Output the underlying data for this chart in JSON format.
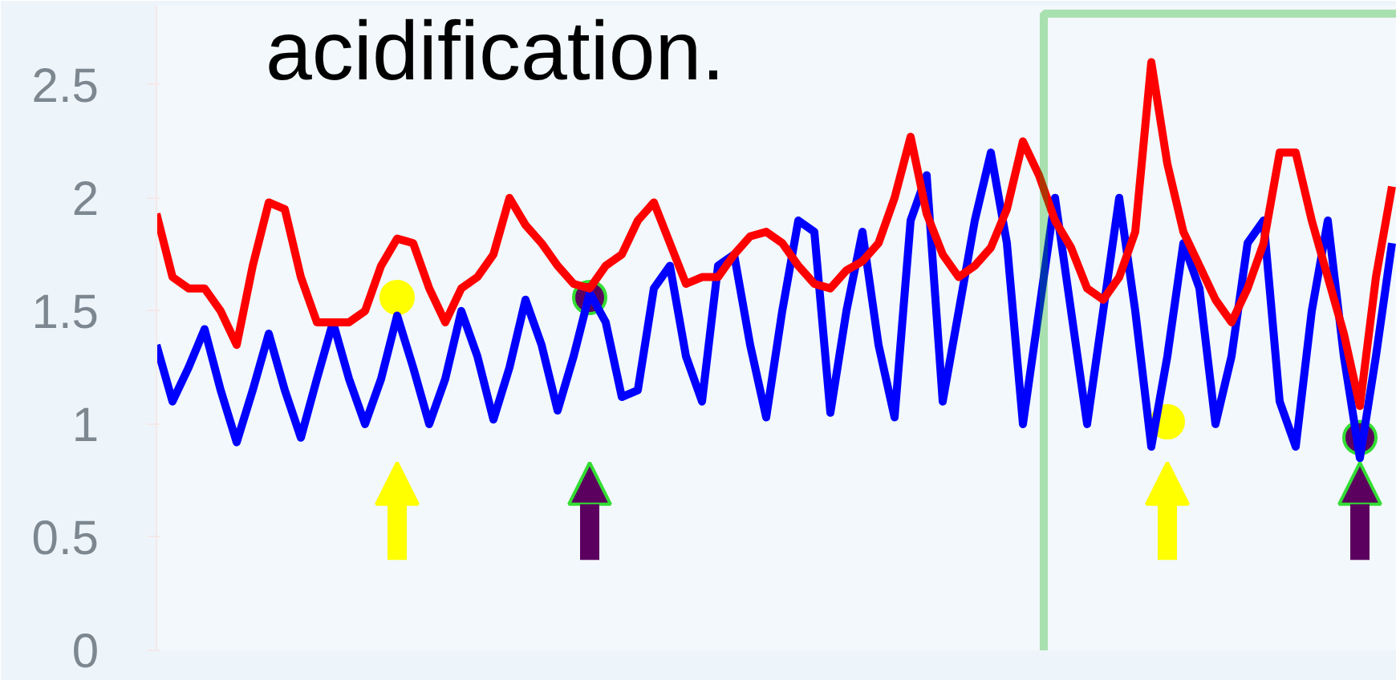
{
  "chart_data": {
    "type": "line",
    "title": "acidification.",
    "categories": [
      null,
      null,
      null,
      null,
      null,
      null,
      null,
      null,
      null,
      null,
      null,
      null,
      null,
      null,
      null,
      null,
      null,
      null,
      null,
      null,
      null,
      null,
      null,
      null,
      null,
      null,
      null,
      null,
      null,
      null,
      null,
      null,
      null,
      null,
      null,
      null,
      null,
      null,
      null,
      null,
      null,
      null,
      null,
      null,
      null,
      null,
      null,
      null,
      null,
      null,
      null,
      null,
      null,
      null,
      null,
      null,
      null,
      null,
      null,
      null,
      null,
      null,
      null,
      null,
      null,
      null,
      null,
      null,
      null,
      null,
      null,
      null,
      null,
      null,
      null,
      null,
      null,
      null
    ],
    "series": [
      {
        "color": "#0000ff",
        "values": [
          1.35,
          1.1,
          1.25,
          1.42,
          1.15,
          0.92,
          1.15,
          1.4,
          1.15,
          0.94,
          1.2,
          1.45,
          1.2,
          1.0,
          1.2,
          1.48,
          1.25,
          1.0,
          1.2,
          1.5,
          1.3,
          1.02,
          1.25,
          1.55,
          1.35,
          1.06,
          1.3,
          1.58,
          1.45,
          1.12,
          1.15,
          1.6,
          1.7,
          1.3,
          1.1,
          1.7,
          1.75,
          1.35,
          1.03,
          1.5,
          1.9,
          1.85,
          1.05,
          1.5,
          1.85,
          1.35,
          1.03,
          1.9,
          2.1,
          1.1,
          1.5,
          1.9,
          2.2,
          1.8,
          1.0,
          1.5,
          2.0,
          1.5,
          1.0,
          1.5,
          2.0,
          1.5,
          0.9,
          1.3,
          1.8,
          1.6,
          1.0,
          1.3,
          1.8,
          1.9,
          1.1,
          0.9,
          1.5,
          1.9,
          1.3,
          0.85,
          1.3,
          1.8
        ]
      },
      {
        "color": "#ff0000",
        "values": [
          1.93,
          1.65,
          1.6,
          1.6,
          1.5,
          1.35,
          1.7,
          1.98,
          1.95,
          1.65,
          1.45,
          1.45,
          1.45,
          1.5,
          1.7,
          1.82,
          1.8,
          1.6,
          1.45,
          1.6,
          1.65,
          1.75,
          2.0,
          1.88,
          1.8,
          1.7,
          1.62,
          1.6,
          1.7,
          1.75,
          1.9,
          1.98,
          1.8,
          1.62,
          1.65,
          1.65,
          1.75,
          1.83,
          1.85,
          1.8,
          1.7,
          1.62,
          1.6,
          1.68,
          1.72,
          1.8,
          2.0,
          2.27,
          1.93,
          1.75,
          1.65,
          1.7,
          1.78,
          1.95,
          2.25,
          2.1,
          1.9,
          1.78,
          1.6,
          1.55,
          1.65,
          1.85,
          2.6,
          2.15,
          1.85,
          1.7,
          1.55,
          1.45,
          1.6,
          1.8,
          2.2,
          2.2,
          1.9,
          1.65,
          1.4,
          1.08,
          1.65,
          2.05
        ]
      },
      {
        "type": "scatter",
        "color": "#ffff00",
        "values": [
          null,
          null,
          null,
          null,
          null,
          null,
          null,
          null,
          null,
          null,
          null,
          null,
          null,
          null,
          null,
          1.56,
          null,
          null,
          null,
          null,
          null,
          null,
          null,
          null,
          null,
          null,
          null,
          null,
          null,
          null,
          null,
          null,
          null,
          null,
          null,
          null,
          null,
          null,
          null,
          null,
          null,
          null,
          null,
          null,
          null,
          null,
          null,
          null,
          null,
          null,
          null,
          null,
          null,
          null,
          null,
          null,
          null,
          null,
          null,
          null,
          null,
          null,
          null,
          1.01,
          null,
          null,
          null,
          null,
          null,
          null,
          null,
          null,
          null,
          null,
          null,
          null,
          null,
          null
        ]
      },
      {
        "type": "scatter",
        "color": "#5c0060",
        "values": [
          null,
          null,
          null,
          null,
          null,
          null,
          null,
          null,
          null,
          null,
          null,
          null,
          null,
          null,
          null,
          null,
          null,
          null,
          null,
          null,
          null,
          null,
          null,
          null,
          null,
          null,
          null,
          1.56,
          null,
          null,
          null,
          null,
          null,
          null,
          null,
          null,
          null,
          null,
          null,
          null,
          null,
          null,
          null,
          null,
          null,
          null,
          null,
          null,
          null,
          null,
          null,
          null,
          null,
          null,
          null,
          null,
          null,
          null,
          null,
          null,
          null,
          null,
          null,
          null,
          null,
          null,
          null,
          null,
          null,
          null,
          null,
          null,
          null,
          null,
          null,
          0.94,
          null,
          null
        ]
      }
    ],
    "ylim": [
      0,
      2.85
    ],
    "yticks": [
      0,
      0.5,
      1,
      1.5,
      2,
      2.5
    ],
    "tick_labels": "y",
    "grid": false
  }
}
